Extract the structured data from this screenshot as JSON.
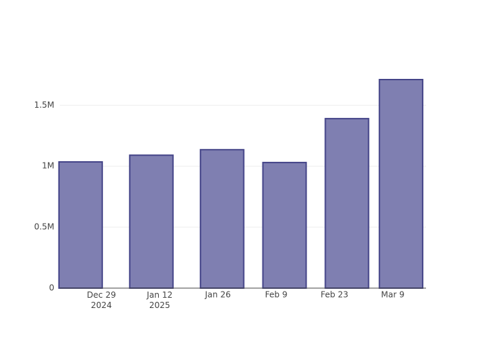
{
  "chart_data": {
    "type": "bar",
    "x": [
      "2024-12-24",
      "2025-01-10",
      "2025-01-27",
      "2025-02-11",
      "2025-02-26",
      "2025-03-11"
    ],
    "values": [
      1035000,
      1090000,
      1135000,
      1030000,
      1390000,
      1710000
    ],
    "color": "#7f7fb1",
    "xlim": [
      "2024-12-19",
      "2025-03-17"
    ],
    "xticks": [
      {
        "value": "2024-12-29",
        "label": "Dec 29\n2024"
      },
      {
        "value": "2025-01-12",
        "label": "Jan 12\n2025"
      },
      {
        "value": "2025-01-26",
        "label": "Jan 26"
      },
      {
        "value": "2025-02-09",
        "label": "Feb 9"
      },
      {
        "value": "2025-02-23",
        "label": "Feb 23"
      },
      {
        "value": "2025-03-09",
        "label": "Mar 9"
      }
    ],
    "ylim": [
      0,
      1800000
    ],
    "yticks": [
      0,
      {
        "value": 500000,
        "label": "0.5M"
      },
      {
        "value": 1000000,
        "label": "1M"
      },
      {
        "value": 1500000,
        "label": "1.5M"
      }
    ],
    "grid": true
  }
}
